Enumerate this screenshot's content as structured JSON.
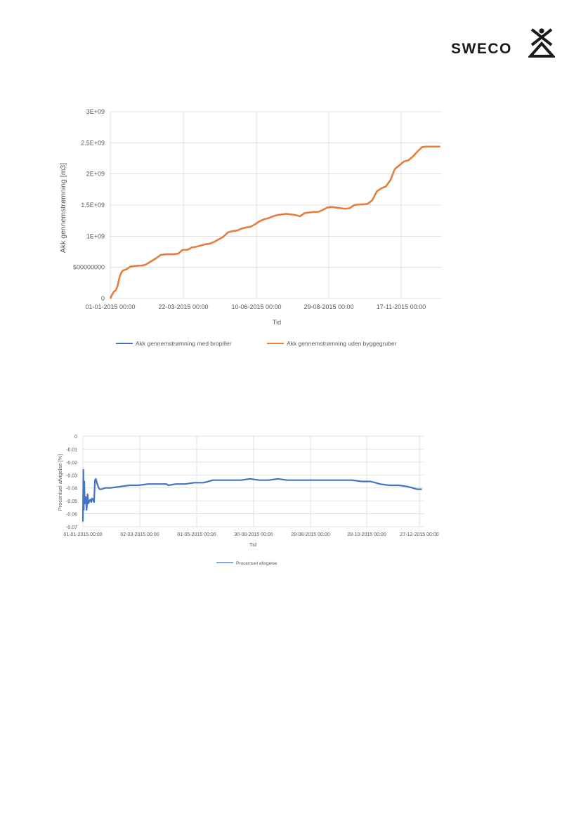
{
  "logo": {
    "text": "SWECO",
    "icon": "sweco-person-house-icon"
  },
  "chart_data": [
    {
      "type": "line",
      "title": "",
      "xlabel": "Tid",
      "ylabel": "Akk  gennemstrømning [m3]",
      "x_ticks": [
        "01-01-2015 00:00",
        "22-03-2015 00:00",
        "10-06-2015 00:00",
        "29-08-2015 00:00",
        "17-11-2015 00:00"
      ],
      "y_ticks": [
        "0",
        "500000000",
        "1E+09",
        "1.5E+09",
        "2E+09",
        "2.5E+09",
        "3E+09"
      ],
      "ylim": [
        0,
        3000000000
      ],
      "xlim_days": [
        0,
        367
      ],
      "grid": true,
      "legend_position": "bottom",
      "series": [
        {
          "name": "Akk gennemstrømning med bropiller",
          "color": "#4472c4",
          "x": [
            0,
            2,
            4,
            6,
            8,
            10,
            12,
            14,
            16,
            18,
            22,
            26,
            30,
            36,
            40,
            50,
            56,
            62,
            70,
            75,
            80,
            85,
            88,
            90,
            95,
            100,
            105,
            110,
            115,
            120,
            125,
            130,
            135,
            140,
            145,
            150,
            155,
            160,
            165,
            170,
            175,
            180,
            185,
            190,
            195,
            200,
            205,
            210,
            215,
            220,
            225,
            230,
            235,
            240,
            245,
            250,
            255,
            260,
            265,
            270,
            275,
            280,
            285,
            290,
            295,
            300,
            305,
            310,
            315,
            320,
            325,
            330,
            335,
            340,
            345,
            350,
            355,
            360,
            365
          ],
          "values": [
            0,
            60000000,
            110000000,
            130000000,
            200000000,
            330000000,
            410000000,
            450000000,
            460000000,
            470000000,
            510000000,
            520000000,
            525000000,
            530000000,
            550000000,
            640000000,
            700000000,
            710000000,
            710000000,
            720000000,
            780000000,
            780000000,
            800000000,
            820000000,
            830000000,
            850000000,
            870000000,
            880000000,
            910000000,
            950000000,
            990000000,
            1060000000,
            1080000000,
            1090000000,
            1120000000,
            1140000000,
            1150000000,
            1190000000,
            1240000000,
            1270000000,
            1290000000,
            1320000000,
            1340000000,
            1350000000,
            1360000000,
            1350000000,
            1340000000,
            1320000000,
            1370000000,
            1380000000,
            1390000000,
            1390000000,
            1420000000,
            1460000000,
            1470000000,
            1460000000,
            1450000000,
            1440000000,
            1450000000,
            1500000000,
            1510000000,
            1510000000,
            1520000000,
            1580000000,
            1720000000,
            1770000000,
            1800000000,
            1900000000,
            2080000000,
            2140000000,
            2200000000,
            2220000000,
            2280000000,
            2360000000,
            2430000000,
            2440000000,
            2440000000,
            2440000000,
            2440000000
          ]
        },
        {
          "name": "Akk gennemstrømning uden byggegruber",
          "color": "#ed7d31",
          "x": [
            0,
            2,
            4,
            6,
            8,
            10,
            12,
            14,
            16,
            18,
            22,
            26,
            30,
            36,
            40,
            50,
            56,
            62,
            70,
            75,
            80,
            85,
            88,
            90,
            95,
            100,
            105,
            110,
            115,
            120,
            125,
            130,
            135,
            140,
            145,
            150,
            155,
            160,
            165,
            170,
            175,
            180,
            185,
            190,
            195,
            200,
            205,
            210,
            215,
            220,
            225,
            230,
            235,
            240,
            245,
            250,
            255,
            260,
            265,
            270,
            275,
            280,
            285,
            290,
            295,
            300,
            305,
            310,
            315,
            320,
            325,
            330,
            335,
            340,
            345,
            350,
            355,
            360,
            365
          ],
          "values": [
            0,
            60000000,
            110000000,
            130000000,
            200000000,
            330000000,
            410000000,
            450000000,
            460000000,
            470000000,
            510000000,
            520000000,
            525000000,
            530000000,
            550000000,
            640000000,
            700000000,
            710000000,
            710000000,
            720000000,
            780000000,
            780000000,
            800000000,
            820000000,
            830000000,
            850000000,
            870000000,
            880000000,
            910000000,
            950000000,
            990000000,
            1060000000,
            1080000000,
            1090000000,
            1120000000,
            1140000000,
            1150000000,
            1190000000,
            1240000000,
            1270000000,
            1290000000,
            1320000000,
            1340000000,
            1350000000,
            1360000000,
            1350000000,
            1340000000,
            1320000000,
            1370000000,
            1380000000,
            1390000000,
            1390000000,
            1420000000,
            1460000000,
            1470000000,
            1460000000,
            1450000000,
            1440000000,
            1450000000,
            1500000000,
            1510000000,
            1510000000,
            1520000000,
            1580000000,
            1720000000,
            1770000000,
            1800000000,
            1900000000,
            2080000000,
            2140000000,
            2200000000,
            2220000000,
            2280000000,
            2360000000,
            2430000000,
            2440000000,
            2440000000,
            2440000000,
            2440000000
          ]
        }
      ]
    },
    {
      "type": "line",
      "title": "",
      "xlabel": "Tid",
      "ylabel": "Procentuel afvigelse [%]",
      "x_ticks": [
        "01-01-2015 00:00",
        "02-03-2015 00:00",
        "01-05-2015 00:00",
        "30-06-2015 00:00",
        "29-08-2015 00:00",
        "28-10-2015 00:00",
        "27-12-2015 00:00"
      ],
      "y_ticks": [
        "0",
        "-0.01",
        "-0.02",
        "-0.03",
        "-0.04",
        "-0.05",
        "-0.06",
        "-0.07"
      ],
      "ylim": [
        -0.07,
        0
      ],
      "xlim_days": [
        0,
        367
      ],
      "grid": true,
      "legend_position": "bottom",
      "series": [
        {
          "name": "Procentuel afvigelse",
          "color": "#4472c4",
          "x": [
            0,
            0.5,
            1,
            1.5,
            2,
            3,
            4,
            5,
            6,
            7,
            8,
            9,
            10,
            11,
            12,
            13,
            14,
            15,
            16,
            17,
            18,
            20,
            24,
            30,
            40,
            50,
            60,
            70,
            80,
            90,
            92,
            100,
            110,
            120,
            130,
            140,
            145,
            150,
            160,
            170,
            180,
            190,
            200,
            210,
            220,
            230,
            240,
            250,
            260,
            270,
            280,
            290,
            300,
            310,
            320,
            330,
            340,
            350,
            355,
            360,
            365
          ],
          "values": [
            -0.066,
            -0.026,
            -0.057,
            -0.035,
            -0.052,
            -0.047,
            -0.057,
            -0.045,
            -0.052,
            -0.05,
            -0.049,
            -0.051,
            -0.048,
            -0.049,
            -0.051,
            -0.034,
            -0.033,
            -0.036,
            -0.038,
            -0.04,
            -0.041,
            -0.041,
            -0.04,
            -0.04,
            -0.039,
            -0.038,
            -0.038,
            -0.037,
            -0.037,
            -0.037,
            -0.038,
            -0.037,
            -0.037,
            -0.036,
            -0.036,
            -0.034,
            -0.034,
            -0.034,
            -0.034,
            -0.034,
            -0.033,
            -0.034,
            -0.034,
            -0.033,
            -0.034,
            -0.034,
            -0.034,
            -0.034,
            -0.034,
            -0.034,
            -0.034,
            -0.034,
            -0.035,
            -0.035,
            -0.037,
            -0.038,
            -0.038,
            -0.039,
            -0.04,
            -0.041,
            -0.041
          ]
        }
      ]
    }
  ]
}
